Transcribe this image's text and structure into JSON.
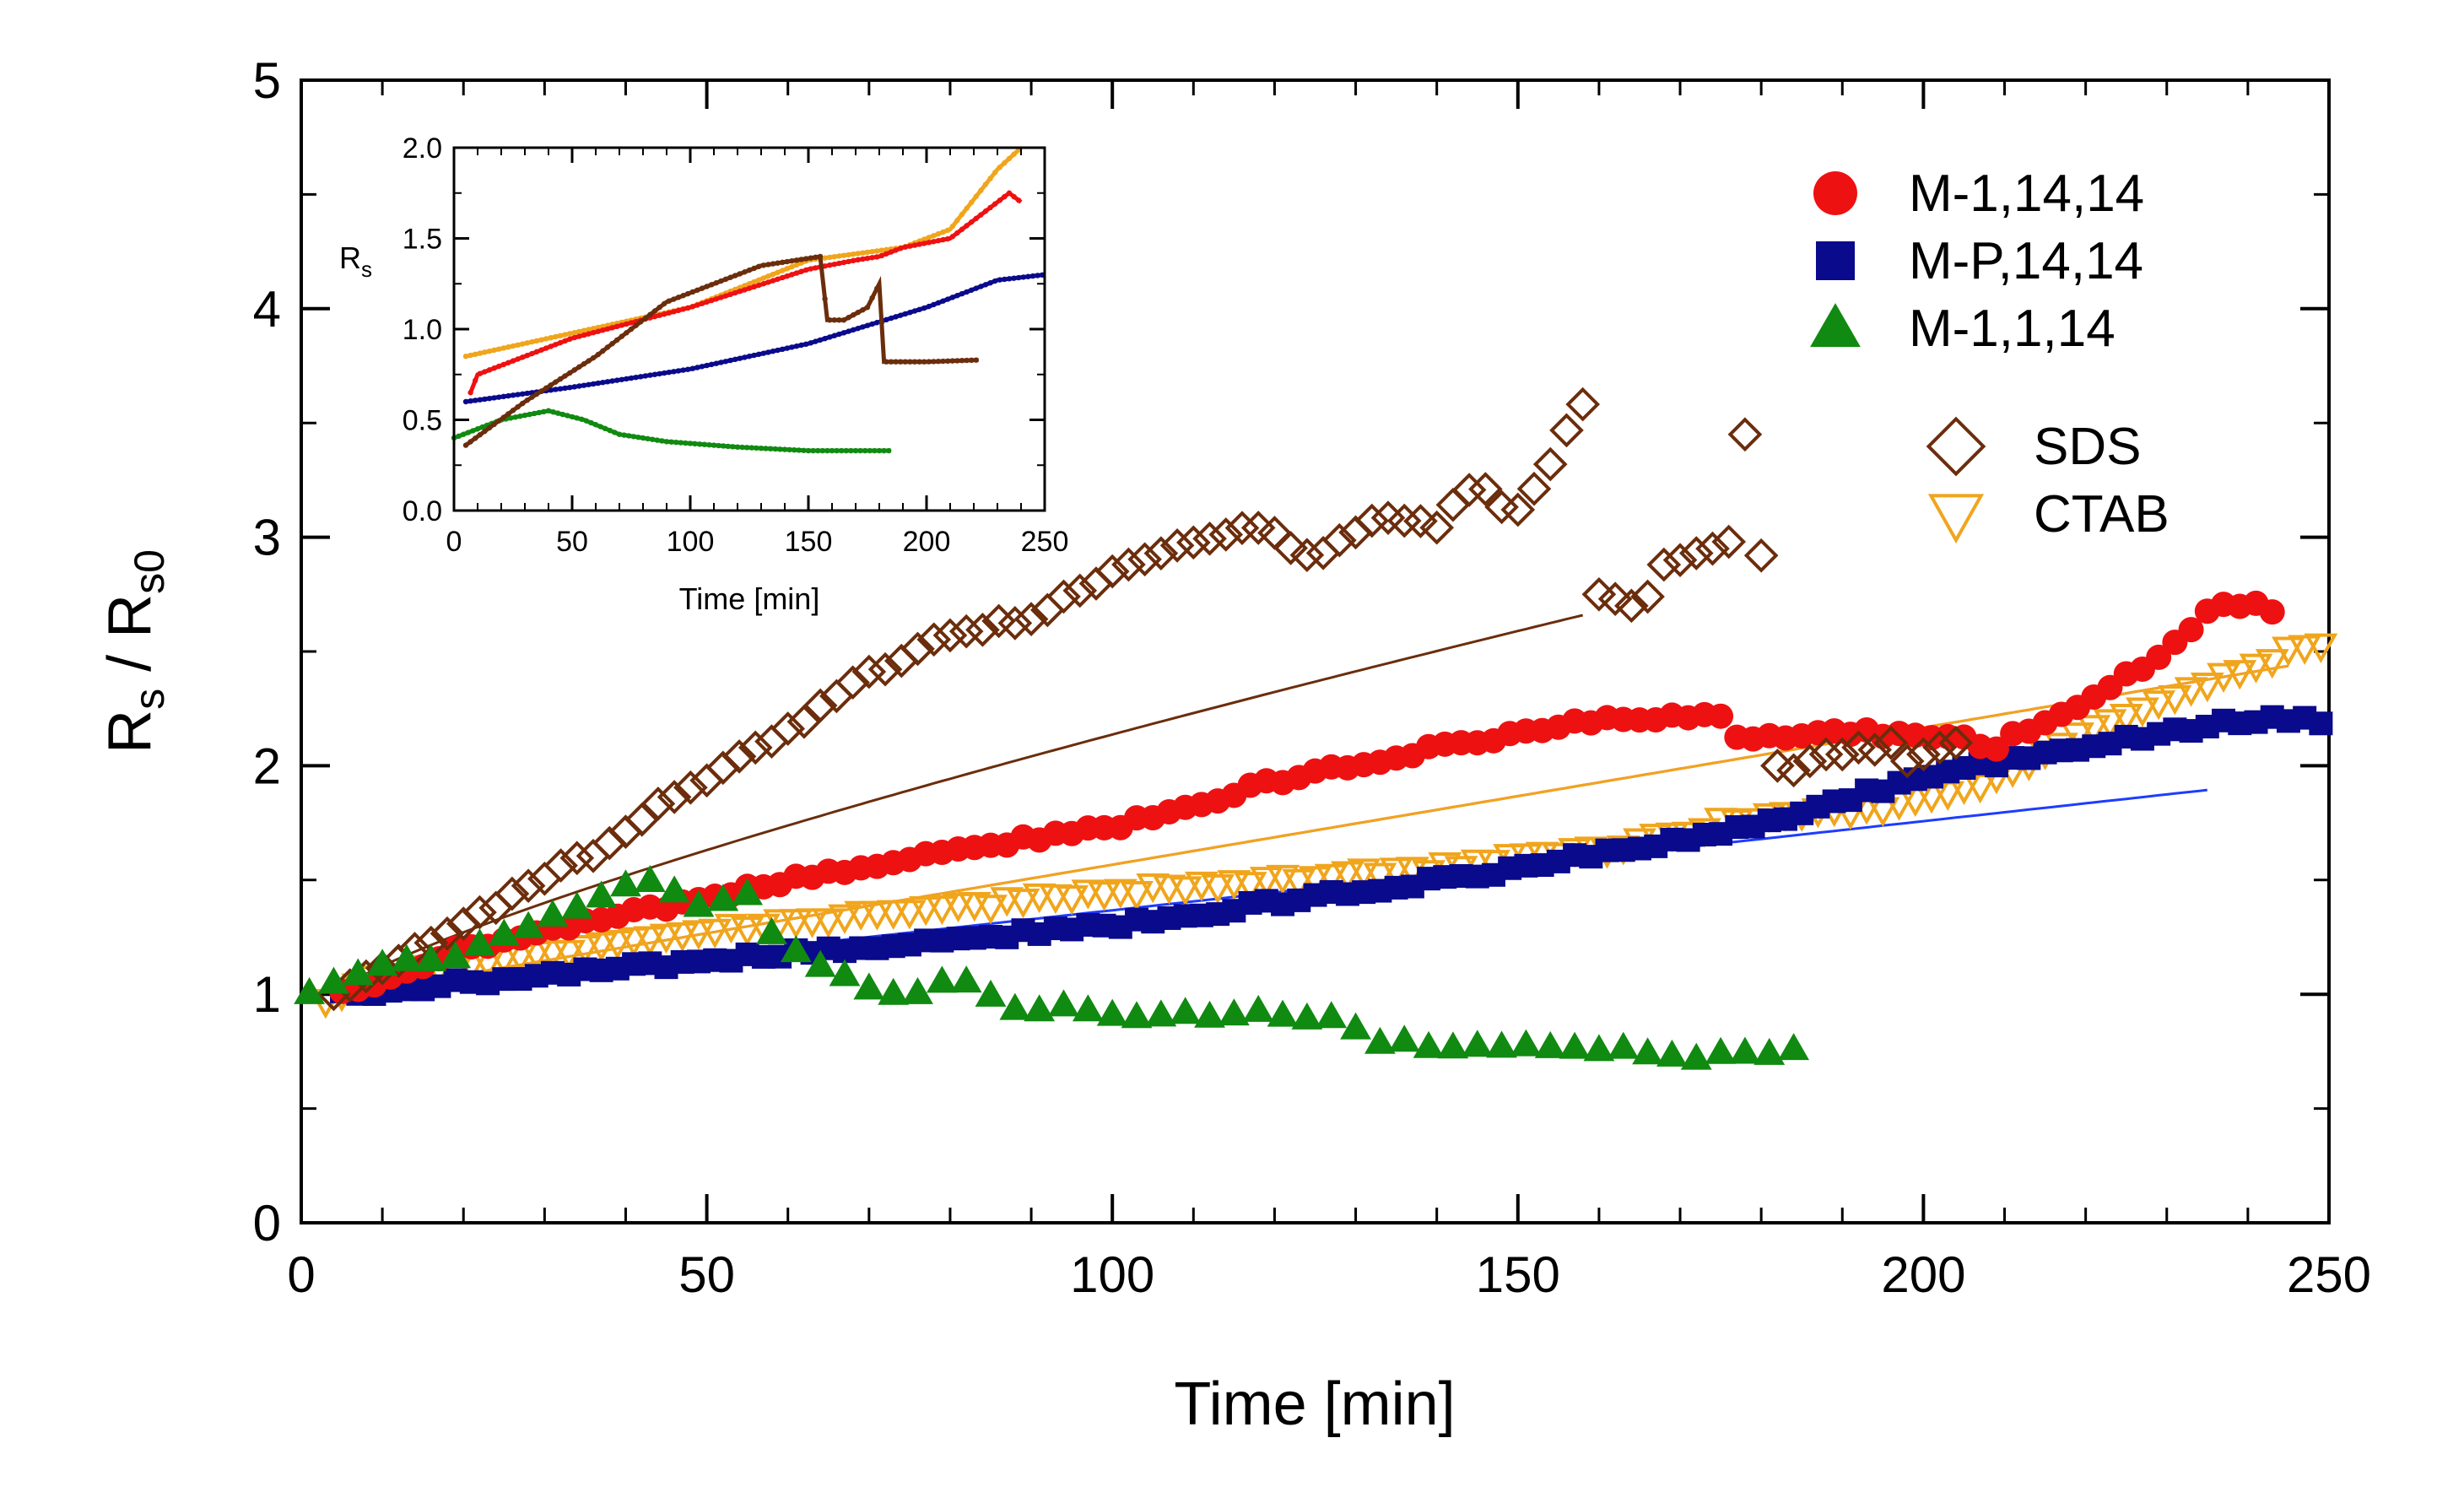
{
  "chart_data": [
    {
      "id": "main",
      "type": "scatter",
      "xlabel": "Time [min]",
      "ylabel": "Rs / Rs0",
      "ylabel_parts": {
        "r1": "R",
        "sub1": "s",
        "slash": " / R",
        "sub2": "s0"
      },
      "xlim": [
        0,
        250
      ],
      "ylim": [
        0,
        5
      ],
      "xticks": [
        0,
        50,
        100,
        150,
        200,
        250
      ],
      "yticks": [
        0,
        1,
        2,
        3,
        4,
        5
      ],
      "legend": [
        {
          "label": "M-1,14,14",
          "marker": "circle",
          "color": "#ee1111"
        },
        {
          "label": "M-P,14,14",
          "marker": "square",
          "color": "#0a0a8c"
        },
        {
          "label": "M-1,1,14",
          "marker": "triangle",
          "color": "#108a10"
        },
        {
          "label": "SDS",
          "marker": "diamond-open",
          "color": "#6b2d0c"
        },
        {
          "label": "CTAB",
          "marker": "triangle-down-open",
          "color": "#f0a51c"
        }
      ],
      "series": [
        {
          "name": "M-1,14,14",
          "color": "#ee1111",
          "marker": "circle",
          "step": 2,
          "anchors": [
            [
              5,
              1.0
            ],
            [
              20,
              1.2
            ],
            [
              40,
              1.35
            ],
            [
              60,
              1.5
            ],
            [
              80,
              1.63
            ],
            [
              100,
              1.73
            ],
            [
              120,
              1.93
            ],
            [
              140,
              2.08
            ],
            [
              160,
              2.2
            ],
            [
              175,
              2.23
            ],
            [
              176,
              2.12
            ],
            [
              190,
              2.15
            ],
            [
              205,
              2.12
            ],
            [
              208,
              2.05
            ],
            [
              210,
              2.12
            ],
            [
              215,
              2.18
            ],
            [
              220,
              2.28
            ],
            [
              230,
              2.5
            ],
            [
              235,
              2.68
            ],
            [
              241,
              2.72
            ],
            [
              244,
              2.63
            ]
          ],
          "fit": {
            "a": 0.997,
            "b": 0.006,
            "from": 5,
            "to": 245
          }
        },
        {
          "name": "M-P,14,14",
          "color": "#0a0a8c",
          "marker": "square",
          "step": 2,
          "anchors": [
            [
              5,
              1.0
            ],
            [
              50,
              1.15
            ],
            [
              100,
              1.3
            ],
            [
              150,
              1.55
            ],
            [
              170,
              1.68
            ],
            [
              180,
              1.75
            ],
            [
              200,
              1.95
            ],
            [
              210,
              2.02
            ],
            [
              220,
              2.08
            ],
            [
              230,
              2.15
            ],
            [
              240,
              2.2
            ],
            [
              250,
              2.2
            ]
          ],
          "fit": {
            "a": 0.997,
            "b": 0.0039,
            "from": 5,
            "to": 235
          }
        },
        {
          "name": "M-1,1,14",
          "color": "#108a10",
          "marker": "triangle",
          "step": 3,
          "anchors": [
            [
              1,
              1.0
            ],
            [
              10,
              1.12
            ],
            [
              20,
              1.18
            ],
            [
              30,
              1.32
            ],
            [
              38,
              1.45
            ],
            [
              43,
              1.5
            ],
            [
              47,
              1.42
            ],
            [
              50,
              1.38
            ],
            [
              55,
              1.45
            ],
            [
              58,
              1.28
            ],
            [
              60,
              1.22
            ],
            [
              65,
              1.12
            ],
            [
              70,
              1.03
            ],
            [
              75,
              1.0
            ],
            [
              80,
              1.08
            ],
            [
              84,
              1.03
            ],
            [
              88,
              0.93
            ],
            [
              95,
              0.95
            ],
            [
              100,
              0.9
            ],
            [
              120,
              0.92
            ],
            [
              128,
              0.9
            ],
            [
              132,
              0.8
            ],
            [
              145,
              0.77
            ],
            [
              160,
              0.77
            ],
            [
              170,
              0.73
            ],
            [
              180,
              0.74
            ],
            [
              186,
              0.77
            ]
          ]
        },
        {
          "name": "SDS",
          "color": "#6b2d0c",
          "marker": "diamond-open",
          "step": 2,
          "anchors": [
            [
              4,
              1.0
            ],
            [
              10,
              1.12
            ],
            [
              20,
              1.3
            ],
            [
              30,
              1.52
            ],
            [
              38,
              1.65
            ],
            [
              45,
              1.85
            ],
            [
              55,
              2.05
            ],
            [
              60,
              2.15
            ],
            [
              70,
              2.4
            ],
            [
              80,
              2.58
            ],
            [
              90,
              2.65
            ],
            [
              100,
              2.85
            ],
            [
              110,
              2.98
            ],
            [
              118,
              3.05
            ],
            [
              125,
              2.9
            ],
            [
              133,
              3.1
            ],
            [
              140,
              3.05
            ],
            [
              145,
              3.25
            ],
            [
              149,
              3.1
            ],
            [
              152,
              3.2
            ],
            [
              158,
              3.58
            ]
          ],
          "extra": [
            [
              160,
              2.75
            ],
            [
              162,
              2.73
            ],
            [
              164,
              2.7
            ],
            [
              166,
              2.74
            ],
            [
              168,
              2.88
            ],
            [
              170,
              2.9
            ],
            [
              172,
              2.93
            ],
            [
              174,
              2.95
            ],
            [
              176,
              2.98
            ],
            [
              178,
              3.45
            ],
            [
              180,
              2.92
            ],
            [
              182,
              2.0
            ],
            [
              184,
              1.98
            ],
            [
              186,
              2.02
            ],
            [
              188,
              2.05
            ],
            [
              190,
              2.05
            ],
            [
              192,
              2.08
            ],
            [
              194,
              2.07
            ],
            [
              196,
              2.1
            ],
            [
              198,
              2.02
            ],
            [
              200,
              2.05
            ],
            [
              202,
              2.08
            ],
            [
              204,
              2.1
            ]
          ],
          "fit": {
            "a": 1.0,
            "b": 0.0295,
            "p": 0.8,
            "from": 4,
            "to": 158
          }
        },
        {
          "name": "CTAB",
          "color": "#f0a51c",
          "marker": "triangle-down-open",
          "step": 2,
          "anchors": [
            [
              3,
              0.96
            ],
            [
              10,
              1.08
            ],
            [
              30,
              1.18
            ],
            [
              50,
              1.28
            ],
            [
              80,
              1.38
            ],
            [
              100,
              1.45
            ],
            [
              120,
              1.5
            ],
            [
              140,
              1.55
            ],
            [
              150,
              1.6
            ],
            [
              160,
              1.63
            ],
            [
              175,
              1.75
            ],
            [
              180,
              1.78
            ],
            [
              190,
              1.8
            ],
            [
              200,
              1.85
            ],
            [
              210,
              1.95
            ],
            [
              220,
              2.15
            ],
            [
              230,
              2.3
            ],
            [
              240,
              2.42
            ],
            [
              245,
              2.5
            ],
            [
              250,
              2.55
            ]
          ],
          "fit": {
            "a": 0.997,
            "b": 0.006,
            "from": 5,
            "to": 245
          }
        }
      ]
    },
    {
      "id": "inset",
      "type": "scatter",
      "xlabel": "Time [min]",
      "ylabel": "Rs",
      "ylabel_parts": {
        "r1": "R",
        "sub1": "s"
      },
      "xlim": [
        0,
        250
      ],
      "ylim": [
        0,
        2.0
      ],
      "xticks": [
        0,
        50,
        100,
        150,
        200,
        250
      ],
      "yticks": [
        0.0,
        0.5,
        1.0,
        1.5,
        2.0
      ],
      "ytick_labels": [
        "0.0",
        "0.5",
        "1.0",
        "1.5",
        "2.0"
      ],
      "series": [
        {
          "name": "CTAB",
          "color": "#f0a51c",
          "anchors": [
            [
              5,
              0.85
            ],
            [
              100,
              1.12
            ],
            [
              150,
              1.38
            ],
            [
              190,
              1.45
            ],
            [
              210,
              1.55
            ],
            [
              230,
              1.88
            ],
            [
              240,
              2.0
            ]
          ]
        },
        {
          "name": "M-1,14,14",
          "color": "#ee1111",
          "anchors": [
            [
              7,
              0.65
            ],
            [
              10,
              0.75
            ],
            [
              50,
              0.95
            ],
            [
              100,
              1.12
            ],
            [
              150,
              1.33
            ],
            [
              170,
              1.38
            ],
            [
              180,
              1.4
            ],
            [
              190,
              1.45
            ],
            [
              210,
              1.5
            ],
            [
              225,
              1.65
            ],
            [
              235,
              1.75
            ],
            [
              240,
              1.7
            ]
          ]
        },
        {
          "name": "M-P,14,14",
          "color": "#0a0a8c",
          "anchors": [
            [
              5,
              0.6
            ],
            [
              50,
              0.68
            ],
            [
              100,
              0.78
            ],
            [
              150,
              0.92
            ],
            [
              200,
              1.12
            ],
            [
              230,
              1.27
            ],
            [
              250,
              1.3
            ]
          ]
        },
        {
          "name": "M-1,1,14",
          "color": "#108a10",
          "anchors": [
            [
              0,
              0.4
            ],
            [
              20,
              0.5
            ],
            [
              40,
              0.55
            ],
            [
              55,
              0.5
            ],
            [
              70,
              0.42
            ],
            [
              90,
              0.38
            ],
            [
              120,
              0.35
            ],
            [
              150,
              0.33
            ],
            [
              185,
              0.33
            ]
          ]
        },
        {
          "name": "SDS",
          "color": "#6b2d0c",
          "anchors": [
            [
              5,
              0.36
            ],
            [
              30,
              0.6
            ],
            [
              60,
              0.85
            ],
            [
              90,
              1.15
            ],
            [
              130,
              1.35
            ],
            [
              155,
              1.4
            ],
            [
              158,
              1.05
            ],
            [
              165,
              1.05
            ],
            [
              175,
              1.12
            ],
            [
              180,
              1.25
            ],
            [
              182,
              0.82
            ],
            [
              200,
              0.82
            ],
            [
              222,
              0.83
            ]
          ]
        }
      ]
    }
  ]
}
